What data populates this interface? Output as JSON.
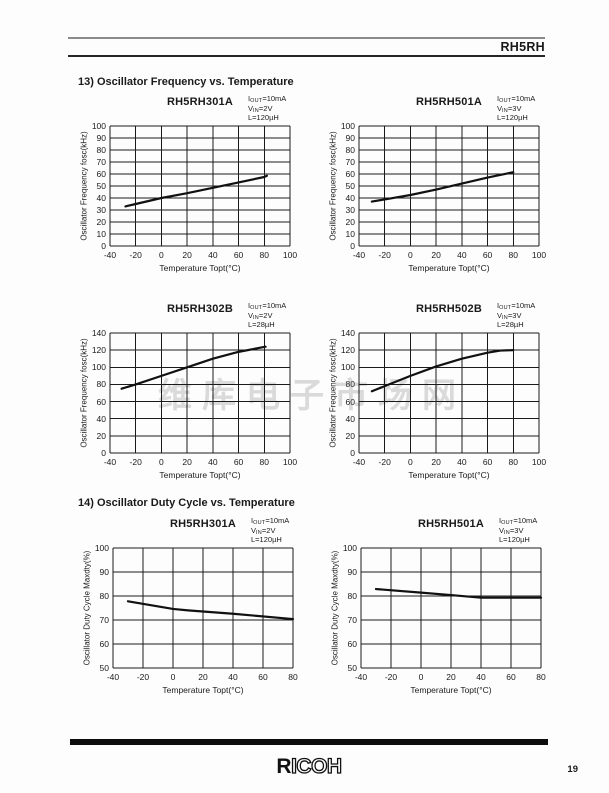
{
  "page": {
    "header_title": "RH5RH",
    "page_number": "19",
    "brand_solid": "R",
    "brand_outline": "ICOH",
    "watermark": "维库电子市场网"
  },
  "sections": {
    "s13": "13) Oscillator Frequency vs. Temperature",
    "s14": "14) Oscillator Duty Cycle vs. Temperature"
  },
  "chart_data": [
    {
      "type": "line",
      "title": "RH5RH301A",
      "conditions": [
        {
          "base": "I",
          "sub": "OUT",
          "rest": "=10mA"
        },
        {
          "base": "V",
          "sub": "IN",
          "rest": "=2V"
        },
        {
          "base": "L",
          "sub": "",
          "rest": "=120µH"
        }
      ],
      "ylabel": "Oscillator Frequency fosc(kHz)",
      "xlabel": "Temperature Topt(°C)",
      "xlim": [
        -40,
        100
      ],
      "xstep": 20,
      "ylim": [
        0,
        100
      ],
      "ystep": 10,
      "grid": true,
      "legend": false,
      "x": [
        -28,
        -20,
        0,
        20,
        40,
        60,
        80,
        82
      ],
      "y": [
        33,
        35,
        40,
        44,
        48.5,
        53,
        57.5,
        58.5
      ]
    },
    {
      "type": "line",
      "title": "RH5RH501A",
      "conditions": [
        {
          "base": "I",
          "sub": "OUT",
          "rest": "=10mA"
        },
        {
          "base": "V",
          "sub": "IN",
          "rest": "=3V"
        },
        {
          "base": "L",
          "sub": "",
          "rest": "=120µH"
        }
      ],
      "ylabel": "Oscillator Frequency fosc(kHz)",
      "xlabel": "Temperature Topt(°C)",
      "xlim": [
        -40,
        100
      ],
      "xstep": 20,
      "ylim": [
        0,
        100
      ],
      "ystep": 10,
      "grid": true,
      "legend": false,
      "x": [
        -30,
        -20,
        0,
        20,
        40,
        60,
        80
      ],
      "y": [
        37,
        38.8,
        42.5,
        47,
        52,
        57,
        61.5
      ]
    },
    {
      "type": "line",
      "title": "RH5RH302B",
      "conditions": [
        {
          "base": "I",
          "sub": "OUT",
          "rest": "=10mA"
        },
        {
          "base": "V",
          "sub": "IN",
          "rest": "=2V"
        },
        {
          "base": "L",
          "sub": "",
          "rest": "=28µH"
        }
      ],
      "ylabel": "Oscillator Frequency fosc(kHz)",
      "xlabel": "Temperature Topt(°C)",
      "xlim": [
        -40,
        100
      ],
      "xstep": 20,
      "ylim": [
        0,
        140
      ],
      "ystep": 20,
      "grid": true,
      "legend": false,
      "x": [
        -31,
        -20,
        0,
        20,
        40,
        60,
        81
      ],
      "y": [
        75,
        80,
        90,
        100,
        110,
        118,
        124
      ]
    },
    {
      "type": "line",
      "title": "RH5RH502B",
      "conditions": [
        {
          "base": "I",
          "sub": "OUT",
          "rest": "=10mA"
        },
        {
          "base": "V",
          "sub": "IN",
          "rest": "=3V"
        },
        {
          "base": "L",
          "sub": "",
          "rest": "=28µH"
        }
      ],
      "ylabel": "Oscillator Frequency fosc(kHz)",
      "xlabel": "Temperature Topt(°C)",
      "xlim": [
        -40,
        100
      ],
      "xstep": 20,
      "ylim": [
        0,
        140
      ],
      "ystep": 20,
      "grid": true,
      "legend": false,
      "x": [
        -30,
        -20,
        0,
        20,
        40,
        60,
        70,
        80
      ],
      "y": [
        72,
        78,
        90,
        101,
        110,
        117,
        119.5,
        120
      ]
    },
    {
      "type": "line",
      "title": "RH5RH301A",
      "conditions": [
        {
          "base": "I",
          "sub": "OUT",
          "rest": "=10mA"
        },
        {
          "base": "V",
          "sub": "IN",
          "rest": "=2V"
        },
        {
          "base": "L",
          "sub": "",
          "rest": "=120µH"
        }
      ],
      "ylabel": "Oscillator Duty Cycle Maxdty(%)",
      "xlabel": "Temperature Topt(°C)",
      "xlim": [
        -40,
        80
      ],
      "xstep": 20,
      "ylim": [
        50,
        100
      ],
      "ystep": 10,
      "grid": true,
      "legend": false,
      "x": [
        -30,
        0,
        10,
        40,
        80
      ],
      "y": [
        77.8,
        74.6,
        74,
        72.6,
        70.4
      ]
    },
    {
      "type": "line",
      "title": "RH5RH501A",
      "conditions": [
        {
          "base": "I",
          "sub": "OUT",
          "rest": "=10mA"
        },
        {
          "base": "V",
          "sub": "IN",
          "rest": "=3V"
        },
        {
          "base": "L",
          "sub": "",
          "rest": "=120µH"
        }
      ],
      "ylabel": "Oscillator Duty Cycle Maxdty(%)",
      "xlabel": "Temperature Topt(°C)",
      "xlim": [
        -40,
        80
      ],
      "xstep": 20,
      "ylim": [
        50,
        100
      ],
      "ystep": 10,
      "grid": true,
      "legend": false,
      "x": [
        -30,
        0,
        20,
        40,
        80
      ],
      "y": [
        82.9,
        81.4,
        80.4,
        79.3,
        79.3
      ]
    }
  ]
}
